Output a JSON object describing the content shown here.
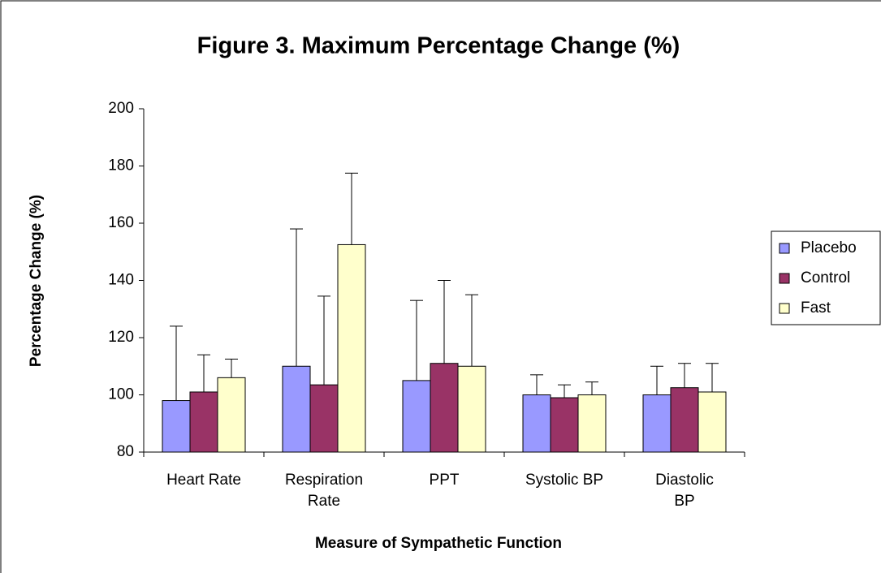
{
  "chart_data": {
    "type": "bar",
    "title": "Figure 3. Maximum Percentage Change (%)",
    "x_label": "Measure of Sympathetic Function",
    "y_label": "Percentage Change (%)",
    "categories": [
      "Heart Rate",
      "Respiration Rate",
      "PPT",
      "Systolic BP",
      "Diastolic BP"
    ],
    "series": [
      {
        "name": "Placebo",
        "color": "#9999ff",
        "values": [
          98,
          110,
          105,
          100,
          100
        ],
        "errors": [
          26,
          48,
          28,
          7,
          10
        ]
      },
      {
        "name": "Control",
        "color": "#993366",
        "values": [
          101,
          103.5,
          111,
          99,
          102.5
        ],
        "errors": [
          13,
          31,
          29,
          4.5,
          8.5
        ]
      },
      {
        "name": "Fast",
        "color": "#ffffcc",
        "values": [
          106,
          152.5,
          110,
          100,
          101
        ],
        "errors": [
          6.5,
          25,
          25,
          4.5,
          10
        ]
      }
    ],
    "ylim": [
      80,
      200
    ],
    "yticks": [
      80,
      100,
      120,
      140,
      160,
      180,
      200
    ],
    "grid": false,
    "legend": "right"
  }
}
